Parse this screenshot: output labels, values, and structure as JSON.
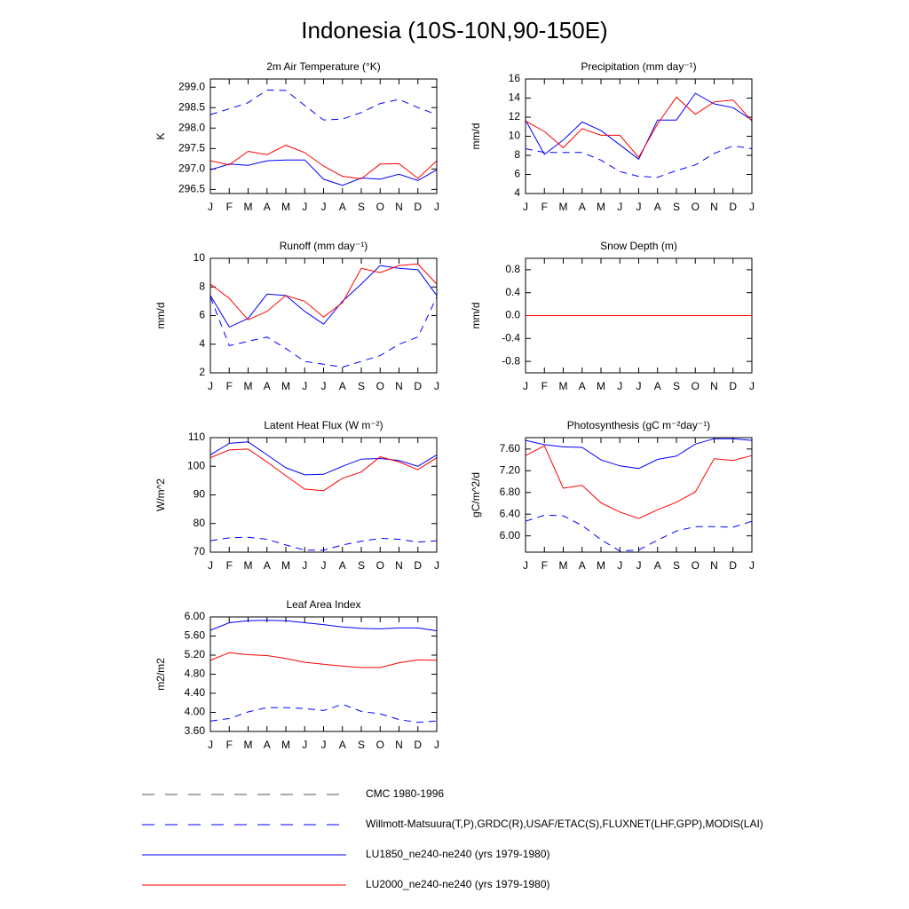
{
  "title": "Indonesia (10S-10N,90-150E)",
  "legend": [
    {
      "name": "CMC 1980-1996",
      "color": "#555555",
      "dash": true
    },
    {
      "name": "Willmott-Matsuura(T,P),GRDC(R),USAF/ETAC(S),FLUXNET(LHF,GPP),MODIS(LAI)",
      "color": "#0000ff",
      "dash": true
    },
    {
      "name": "LU1850_ne240-ne240 (yrs 1979-1980)",
      "color": "#0000ff",
      "dash": false
    },
    {
      "name": "LU2000_ne240-ne240 (yrs 1979-1980)",
      "color": "#ff0000",
      "dash": false
    }
  ],
  "chart_data": [
    {
      "type": "line",
      "title": "2m Air Temperature (°K)",
      "ylabel": "K",
      "categories": [
        "J",
        "F",
        "M",
        "A",
        "M",
        "J",
        "J",
        "A",
        "S",
        "O",
        "N",
        "D",
        "J"
      ],
      "ylim": [
        296.4,
        299.2
      ],
      "yticks": [
        {
          "value": 296.5,
          "label": "296.5"
        },
        {
          "value": 297,
          "label": "297.0"
        },
        {
          "value": 297.5,
          "label": "297.5"
        },
        {
          "value": 298,
          "label": "298.0"
        },
        {
          "value": 298.5,
          "label": "298.5"
        },
        {
          "value": 299,
          "label": "299.0"
        }
      ],
      "series": [
        {
          "color": "#0000ff",
          "dash": true,
          "values": [
            298.33,
            298.47,
            298.62,
            298.93,
            298.92,
            298.55,
            298.2,
            298.22,
            298.38,
            298.6,
            298.7,
            298.5,
            298.33
          ]
        },
        {
          "color": "#0000ff",
          "dash": false,
          "values": [
            296.98,
            297.12,
            297.09,
            297.2,
            297.22,
            297.22,
            296.75,
            296.6,
            296.78,
            296.75,
            296.87,
            296.72,
            296.98
          ]
        },
        {
          "color": "#ff0000",
          "dash": false,
          "values": [
            297.2,
            297.1,
            297.43,
            297.35,
            297.58,
            297.4,
            297.07,
            296.82,
            296.76,
            297.12,
            297.13,
            296.77,
            297.2
          ]
        }
      ]
    },
    {
      "type": "line",
      "title": "Precipitation (mm day⁻¹)",
      "ylabel": "mm/d",
      "categories": [
        "J",
        "F",
        "M",
        "A",
        "M",
        "J",
        "J",
        "A",
        "S",
        "O",
        "N",
        "D",
        "J"
      ],
      "ylim": [
        4,
        16
      ],
      "yticks": [
        4,
        6,
        8,
        10,
        12,
        14,
        16
      ],
      "series": [
        {
          "color": "#0000ff",
          "dash": true,
          "values": [
            8.7,
            8.3,
            8.3,
            8.3,
            7.5,
            6.3,
            5.8,
            5.7,
            6.4,
            7.0,
            8.2,
            9.0,
            8.7
          ]
        },
        {
          "color": "#0000ff",
          "dash": false,
          "values": [
            11.7,
            8.1,
            9.6,
            11.5,
            10.6,
            9.1,
            7.6,
            11.7,
            11.7,
            14.5,
            13.4,
            13.0,
            11.7
          ]
        },
        {
          "color": "#ff0000",
          "dash": false,
          "values": [
            11.6,
            10.5,
            8.8,
            10.8,
            10.1,
            10.1,
            7.8,
            11.3,
            14.1,
            12.3,
            13.6,
            13.8,
            11.6
          ]
        }
      ]
    },
    {
      "type": "line",
      "title": "Runoff (mm day⁻¹)",
      "ylabel": "mm/d",
      "categories": [
        "J",
        "F",
        "M",
        "A",
        "M",
        "J",
        "J",
        "A",
        "S",
        "O",
        "N",
        "D",
        "J"
      ],
      "ylim": [
        2,
        10
      ],
      "yticks": [
        2,
        4,
        6,
        8,
        10
      ],
      "series": [
        {
          "color": "#0000ff",
          "dash": true,
          "values": [
            7.3,
            3.9,
            4.2,
            4.5,
            3.7,
            2.8,
            2.6,
            2.4,
            2.8,
            3.2,
            4.0,
            4.5,
            7.3
          ]
        },
        {
          "color": "#0000ff",
          "dash": false,
          "values": [
            7.4,
            5.2,
            5.8,
            7.5,
            7.4,
            6.3,
            5.4,
            7.0,
            8.2,
            9.5,
            9.3,
            9.2,
            7.4
          ]
        },
        {
          "color": "#ff0000",
          "dash": false,
          "values": [
            8.2,
            7.2,
            5.7,
            6.3,
            7.4,
            7.0,
            5.9,
            6.9,
            9.3,
            9.0,
            9.5,
            9.6,
            8.2
          ]
        }
      ]
    },
    {
      "type": "line",
      "title": "Snow Depth (m)",
      "ylabel": "mm/d",
      "categories": [
        "J",
        "F",
        "M",
        "A",
        "M",
        "J",
        "J",
        "A",
        "S",
        "O",
        "N",
        "D",
        "J"
      ],
      "ylim": [
        -1,
        1
      ],
      "yticks": [
        -0.8,
        -0.4,
        {
          "value": 0,
          "label": "0.0"
        },
        0.4,
        0.8
      ],
      "series": [
        {
          "color": "#555555",
          "dash": true,
          "values": [
            0,
            0,
            0,
            0,
            0,
            0,
            0,
            0,
            0,
            0,
            0,
            0,
            0
          ]
        },
        {
          "color": "#0000ff",
          "dash": false,
          "values": [
            0,
            0,
            0,
            0,
            0,
            0,
            0,
            0,
            0,
            0,
            0,
            0,
            0
          ]
        },
        {
          "color": "#ff0000",
          "dash": false,
          "values": [
            0,
            0,
            0,
            0,
            0,
            0,
            0,
            0,
            0,
            0,
            0,
            0,
            0
          ]
        }
      ]
    },
    {
      "type": "line",
      "title": "Latent Heat Flux (W m⁻²)",
      "ylabel": "W/m^2",
      "categories": [
        "J",
        "F",
        "M",
        "A",
        "M",
        "J",
        "J",
        "A",
        "S",
        "O",
        "N",
        "D",
        "J"
      ],
      "ylim": [
        70,
        110
      ],
      "yticks": [
        70,
        80,
        90,
        100,
        110
      ],
      "series": [
        {
          "color": "#0000ff",
          "dash": true,
          "values": [
            74,
            75,
            75.2,
            74.5,
            72.5,
            70.7,
            70.7,
            72.5,
            73.8,
            74.8,
            74.5,
            73.5,
            74
          ]
        },
        {
          "color": "#0000ff",
          "dash": false,
          "values": [
            104,
            108,
            108.5,
            104,
            99.5,
            97,
            97.2,
            100,
            102.5,
            102.7,
            102,
            100,
            104
          ]
        },
        {
          "color": "#ff0000",
          "dash": false,
          "values": [
            103,
            105.7,
            106,
            101.5,
            96.7,
            92,
            91.5,
            95.8,
            98,
            103.3,
            101.5,
            98.8,
            103
          ]
        }
      ]
    },
    {
      "type": "line",
      "title": "Photosynthesis (gC m⁻²day⁻¹)",
      "ylabel": "gC/m^2/d",
      "categories": [
        "J",
        "F",
        "M",
        "A",
        "M",
        "J",
        "J",
        "A",
        "S",
        "O",
        "N",
        "D",
        "J"
      ],
      "ylim": [
        5.7,
        7.81
      ],
      "yticks": [
        {
          "value": 6,
          "label": "6.00"
        },
        {
          "value": 6.4,
          "label": "6.40"
        },
        {
          "value": 6.8,
          "label": "6.80"
        },
        {
          "value": 7.2,
          "label": "7.20"
        },
        {
          "value": 7.6,
          "label": "7.60"
        }
      ],
      "series": [
        {
          "color": "#0000ff",
          "dash": true,
          "values": [
            6.27,
            6.38,
            6.37,
            6.19,
            5.93,
            5.72,
            5.74,
            5.92,
            6.09,
            6.17,
            6.17,
            6.16,
            6.27
          ]
        },
        {
          "color": "#0000ff",
          "dash": false,
          "values": [
            7.76,
            7.68,
            7.64,
            7.63,
            7.4,
            7.29,
            7.24,
            7.41,
            7.47,
            7.69,
            7.79,
            7.79,
            7.76
          ]
        },
        {
          "color": "#ff0000",
          "dash": false,
          "values": [
            7.48,
            7.66,
            6.88,
            6.93,
            6.61,
            6.44,
            6.32,
            6.48,
            6.62,
            6.81,
            7.42,
            7.39,
            7.48
          ]
        }
      ]
    },
    {
      "type": "line",
      "title": "Leaf Area Index",
      "ylabel": "m2/m2",
      "categories": [
        "J",
        "F",
        "M",
        "A",
        "M",
        "J",
        "J",
        "A",
        "S",
        "O",
        "N",
        "D",
        "J"
      ],
      "ylim": [
        3.6,
        6
      ],
      "yticks": [
        {
          "value": 3.6,
          "label": "3.60"
        },
        {
          "value": 4,
          "label": "4.00"
        },
        {
          "value": 4.4,
          "label": "4.40"
        },
        {
          "value": 4.8,
          "label": "4.80"
        },
        {
          "value": 5.2,
          "label": "5.20"
        },
        {
          "value": 5.6,
          "label": "5.60"
        },
        {
          "value": 6,
          "label": "6.00"
        }
      ],
      "series": [
        {
          "color": "#0000ff",
          "dash": true,
          "values": [
            3.82,
            3.87,
            4.01,
            4.1,
            4.1,
            4.08,
            4.04,
            4.17,
            4.02,
            3.97,
            3.85,
            3.79,
            3.82
          ]
        },
        {
          "color": "#0000ff",
          "dash": false,
          "values": [
            5.72,
            5.88,
            5.92,
            5.93,
            5.92,
            5.88,
            5.84,
            5.79,
            5.76,
            5.75,
            5.77,
            5.77,
            5.71
          ]
        },
        {
          "color": "#ff0000",
          "dash": false,
          "values": [
            5.09,
            5.25,
            5.21,
            5.19,
            5.13,
            5.05,
            5.01,
            4.97,
            4.94,
            4.94,
            5.04,
            5.1,
            5.09
          ]
        }
      ]
    }
  ]
}
